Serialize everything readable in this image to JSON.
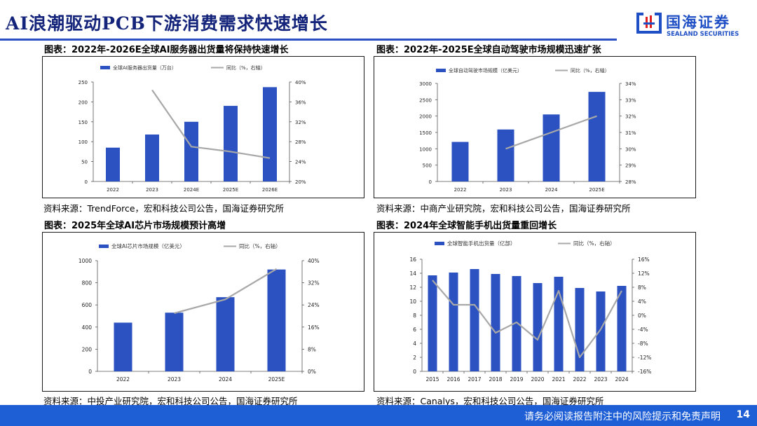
{
  "slide": {
    "title": "AI浪潮驱动PCB下游消费需求快速增长",
    "logo_cn": "国海证券",
    "logo_en": "SEALAND SECURITIES",
    "footer_text": "请务必阅读报告附注中的风险提示和免责声明",
    "page_number": "14",
    "colors": {
      "bar": "#2b52c0",
      "line": "#a8a8a8",
      "title": "#14247a",
      "footer": "#1f5fd6"
    }
  },
  "panels": [
    {
      "title": "图表：2022年-2026E全球AI服务器出货量将保持快速增长",
      "source": "资料来源：TrendForce，宏和科技公司公告，国海证券研究所"
    },
    {
      "title": "图表：2022年-2025E全球自动驾驶市场规模迅速扩张",
      "source": "资料来源：中商产业研究院，宏和科技公司公告，国海证券研究所"
    },
    {
      "title": "图表：2025年全球AI芯片市场规模预计高增",
      "source": "资料来源：中投产业研究院，宏和科技公司公告，国海证券研究所"
    },
    {
      "title": "图表：2024年全球智能手机出货量重回增长",
      "source": "资料来源：Canalys，宏和科技公司公告，国海证券研究所"
    }
  ],
  "chart_data": [
    {
      "type": "bar",
      "categories": [
        "2022",
        "2023",
        "2024E",
        "2025E",
        "2026E"
      ],
      "series": [
        {
          "name": "全球AI服务器出货量（万台）",
          "type": "bar",
          "axis": "left",
          "values": [
            85,
            118,
            150,
            190,
            237
          ]
        },
        {
          "name": "同比（%，右轴）",
          "type": "line",
          "axis": "right",
          "values": [
            null,
            38.4,
            27.0,
            26.0,
            24.7
          ]
        }
      ],
      "ylim": [
        0,
        250
      ],
      "yticks": [
        "0",
        "50",
        "100",
        "150",
        "200",
        "250"
      ],
      "y2lim": [
        20,
        40
      ],
      "y2ticks": [
        "20%",
        "24%",
        "28%",
        "32%",
        "36%",
        "40%"
      ],
      "legend_position": "top"
    },
    {
      "type": "bar",
      "categories": [
        "2022",
        "2023",
        "2024",
        "2025E"
      ],
      "series": [
        {
          "name": "全球自动驾驶市场规模（亿美元）",
          "type": "bar",
          "axis": "left",
          "values": [
            1210,
            1590,
            2050,
            2740
          ]
        },
        {
          "name": "同比（%，右轴）",
          "type": "line",
          "axis": "right",
          "values": [
            null,
            30.0,
            31.0,
            32.0
          ]
        }
      ],
      "ylim": [
        0,
        3000
      ],
      "yticks": [
        "0",
        "500",
        "1000",
        "1500",
        "2000",
        "2500",
        "3000"
      ],
      "y2lim": [
        28,
        34
      ],
      "y2ticks": [
        "28%",
        "29%",
        "30%",
        "31%",
        "32%",
        "33%",
        "34%"
      ],
      "legend_position": "top"
    },
    {
      "type": "bar",
      "categories": [
        "2022",
        "2023",
        "2024",
        "2025E"
      ],
      "series": [
        {
          "name": "全球AI芯片市场规模（亿美元）",
          "type": "bar",
          "axis": "left",
          "values": [
            440,
            530,
            670,
            920
          ]
        },
        {
          "name": "同比（%，右轴）",
          "type": "line",
          "axis": "right",
          "values": [
            null,
            21.0,
            26.0,
            37.0
          ]
        }
      ],
      "ylim": [
        0,
        1000
      ],
      "yticks": [
        "0",
        "200",
        "400",
        "600",
        "800",
        "1000"
      ],
      "y2lim": [
        0,
        40
      ],
      "y2ticks": [
        "0%",
        "8%",
        "16%",
        "24%",
        "32%",
        "40%"
      ],
      "legend_position": "top"
    },
    {
      "type": "bar",
      "categories": [
        "2015",
        "2016",
        "2017",
        "2018",
        "2019",
        "2020",
        "2021",
        "2022",
        "2023",
        "2024"
      ],
      "series": [
        {
          "name": "全球智能手机出货量（亿部）",
          "type": "bar",
          "axis": "left",
          "values": [
            13.7,
            14.1,
            14.6,
            13.9,
            13.6,
            12.6,
            13.5,
            11.9,
            11.4,
            12.2
          ]
        },
        {
          "name": "同比（%，右轴）",
          "type": "line",
          "axis": "right",
          "values": [
            10.0,
            3.0,
            3.0,
            -5.0,
            -2.0,
            -7.0,
            7.0,
            -12.0,
            -4.0,
            7.0
          ]
        }
      ],
      "ylim": [
        0,
        16
      ],
      "yticks": [
        "0",
        "2",
        "4",
        "6",
        "8",
        "10",
        "12",
        "14",
        "16"
      ],
      "y2lim": [
        -16,
        16
      ],
      "y2ticks": [
        "-16%",
        "-12%",
        "-8%",
        "-4%",
        "0%",
        "4%",
        "8%",
        "12%",
        "16%"
      ],
      "legend_position": "top"
    }
  ]
}
